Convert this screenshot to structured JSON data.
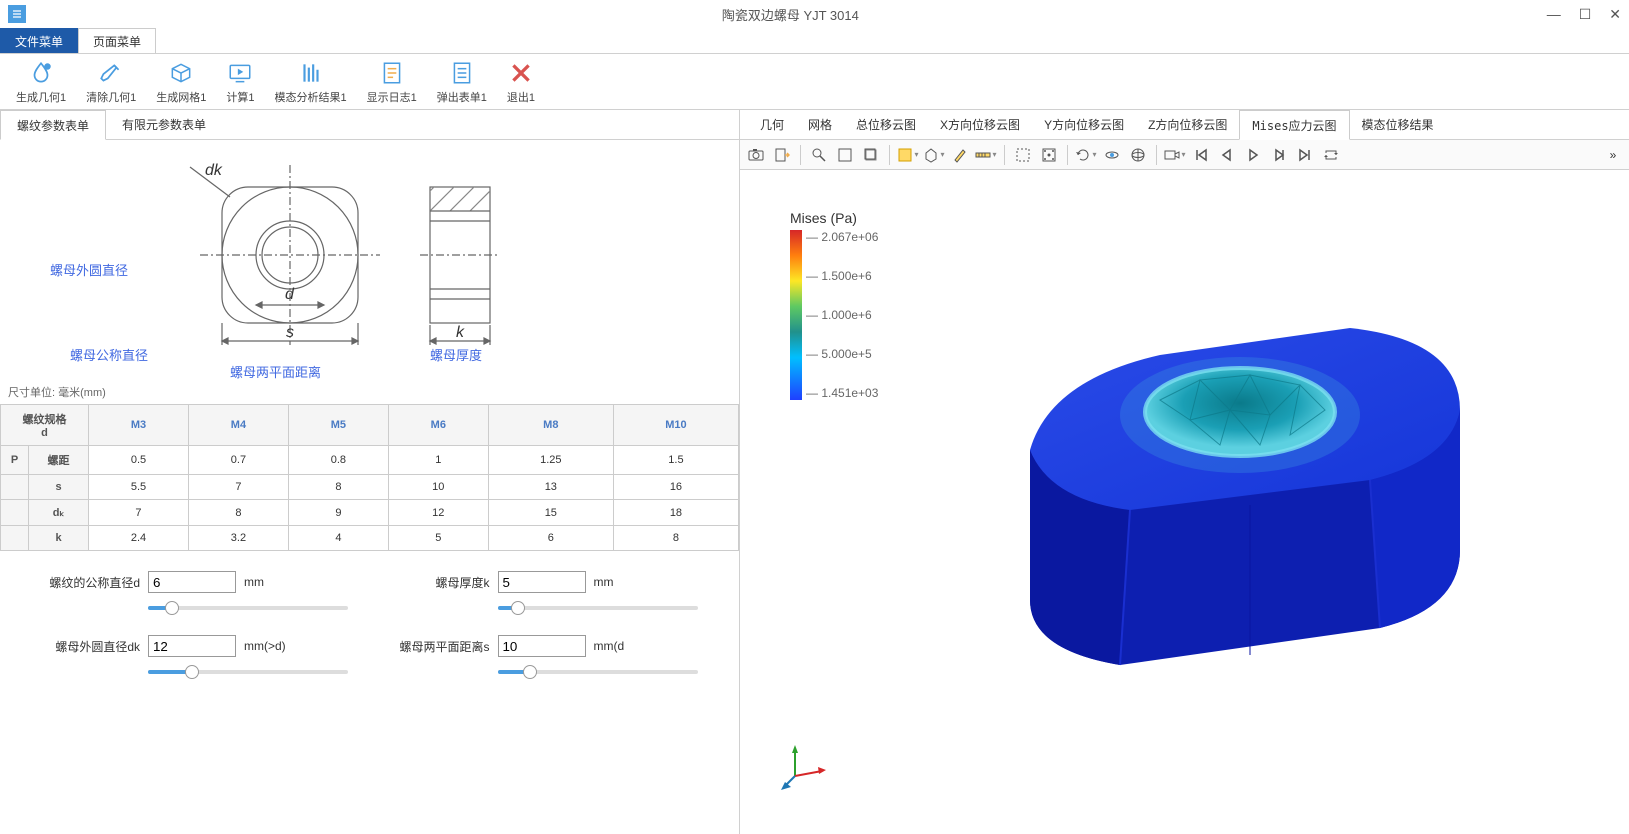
{
  "window": {
    "title": "陶瓷双边螺母 YJT 3014"
  },
  "menubar": {
    "tabs": [
      {
        "label": "文件菜单",
        "active": true
      },
      {
        "label": "页面菜单",
        "active": false
      }
    ]
  },
  "ribbon": {
    "items": [
      {
        "name": "generate-geometry",
        "label": "生成几何1",
        "icon": "droplet",
        "color": "#4a9de0"
      },
      {
        "name": "clear-geometry",
        "label": "清除几何1",
        "icon": "brush",
        "color": "#4a9de0"
      },
      {
        "name": "generate-mesh",
        "label": "生成网格1",
        "icon": "cube",
        "color": "#4a9de0"
      },
      {
        "name": "calculate",
        "label": "计算1",
        "icon": "play-monitor",
        "color": "#4a9de0"
      },
      {
        "name": "modal-analysis",
        "label": "模态分析结果1",
        "icon": "bars",
        "color": "#4a9de0"
      },
      {
        "name": "show-log",
        "label": "显示日志1",
        "icon": "doc-lines",
        "color": "#4a9de0"
      },
      {
        "name": "popup-form",
        "label": "弹出表单1",
        "icon": "doc-text",
        "color": "#4a9de0"
      },
      {
        "name": "exit",
        "label": "退出1",
        "icon": "x",
        "color": "#d9534f"
      }
    ]
  },
  "left_tabs": [
    {
      "label": "螺纹参数表单",
      "active": true
    },
    {
      "label": "有限元参数表单",
      "active": false
    }
  ],
  "diagram": {
    "label_outer_dia": "螺母外圆直径",
    "label_nominal_dia": "螺母公称直径",
    "label_flat_dist": "螺母两平面距离",
    "label_thickness": "螺母厚度",
    "sym_dk": "dk",
    "sym_d": "d",
    "sym_s": "s",
    "sym_k": "k"
  },
  "table": {
    "caption": "尺寸单位: 毫米(mm)",
    "corner_header": "螺纹规格\nd",
    "columns": [
      "M3",
      "M4",
      "M5",
      "M6",
      "M8",
      "M10"
    ],
    "rows": [
      {
        "h1": "P",
        "h2": "螺距",
        "cells": [
          "0.5",
          "0.7",
          "0.8",
          "1",
          "1.25",
          "1.5"
        ]
      },
      {
        "h1": "",
        "h2": "s",
        "cells": [
          "5.5",
          "7",
          "8",
          "10",
          "13",
          "16"
        ]
      },
      {
        "h1": "",
        "h2": "dₖ",
        "cells": [
          "7",
          "8",
          "9",
          "12",
          "15",
          "18"
        ]
      },
      {
        "h1": "",
        "h2": "k",
        "cells": [
          "2.4",
          "3.2",
          "4",
          "5",
          "6",
          "8"
        ]
      }
    ]
  },
  "params": {
    "d": {
      "label": "螺纹的公称直径d",
      "value": "6",
      "unit": "mm",
      "slider_pct": 12
    },
    "k": {
      "label": "螺母厚度k",
      "value": "5",
      "unit": "mm",
      "slider_pct": 10
    },
    "dk": {
      "label": "螺母外圆直径dk",
      "value": "12",
      "unit": "mm(>d)",
      "slider_pct": 22
    },
    "s": {
      "label": "螺母两平面距离s",
      "value": "10",
      "unit": "mm(d<s<dk)",
      "slider_pct": 16
    }
  },
  "right_tabs": [
    {
      "label": "几何",
      "active": false
    },
    {
      "label": "网格",
      "active": false
    },
    {
      "label": "总位移云图",
      "active": false
    },
    {
      "label": "X方向位移云图",
      "active": false
    },
    {
      "label": "Y方向位移云图",
      "active": false
    },
    {
      "label": "Z方向位移云图",
      "active": false
    },
    {
      "label": "Mises应力云图",
      "active": true
    },
    {
      "label": "模态位移结果",
      "active": false
    }
  ],
  "legend": {
    "title": "Mises (Pa)",
    "ticks": [
      "2.067e+06",
      "1.500e+6",
      "1.000e+6",
      "5.000e+5",
      "1.451e+03"
    ],
    "gradient_stops": [
      {
        "c": "#d62728",
        "p": 0
      },
      {
        "c": "#ff7f0e",
        "p": 15
      },
      {
        "c": "#fde725",
        "p": 30
      },
      {
        "c": "#5ec962",
        "p": 45
      },
      {
        "c": "#21918c",
        "p": 60
      },
      {
        "c": "#00bfff",
        "p": 75
      },
      {
        "c": "#1f3fff",
        "p": 100
      }
    ]
  },
  "model_colors": {
    "body": "#0d1fb0",
    "body_light": "#2a4be8",
    "body_top": "#1535d8",
    "hole": "#1a9fb5",
    "hole_rim": "#5cd0e0"
  }
}
